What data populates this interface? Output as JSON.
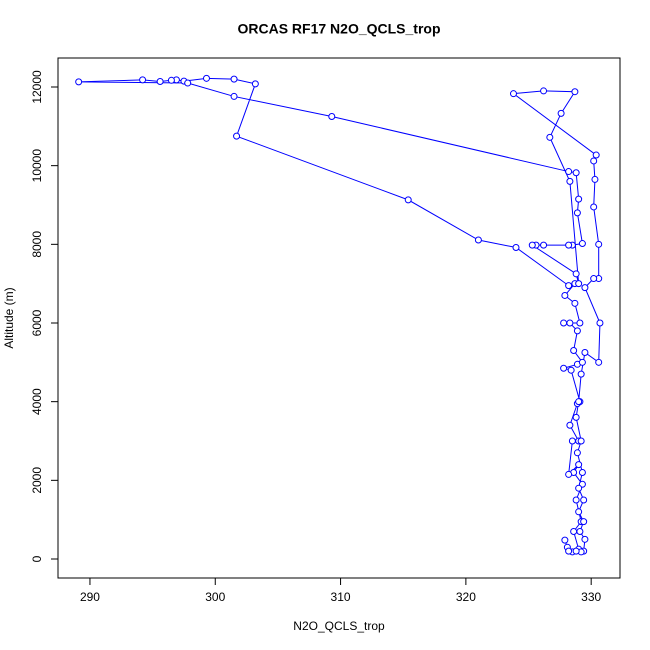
{
  "chart_data": {
    "type": "line",
    "title": "ORCAS RF17 N2O_QCLS_trop",
    "x_label": "N2O_QCLS_trop",
    "y_label": "Altitude (m)",
    "color": "#0000ff",
    "xlim": [
      287.45,
      332.3
    ],
    "ylim": [
      -483,
      12737
    ],
    "xticks": [
      290,
      300,
      310,
      320,
      330
    ],
    "yticks": [
      0,
      2000,
      4000,
      6000,
      8000,
      10000,
      12000
    ],
    "x": [
      327.9,
      328.1,
      328.5,
      329.0,
      328.6,
      329.2,
      328.8,
      329.3,
      328.6,
      329.0,
      328.2,
      328.5,
      329.0,
      328.3,
      328.9,
      329.1,
      328.4,
      327.8,
      328.9,
      329.3,
      328.6,
      328.9,
      328.3,
      327.8,
      329.1,
      328.7,
      327.9,
      328.7,
      328.2,
      324.0,
      321.0,
      315.4,
      301.7,
      303.2,
      301.5,
      299.3,
      297.5,
      296.9,
      296.5,
      295.6,
      294.2,
      289.1,
      297.8,
      301.5,
      309.3,
      328.2,
      328.8,
      329.0,
      328.9,
      329.3,
      328.5,
      328.2,
      326.2,
      325.6,
      325.3,
      328.8,
      329.0,
      328.3,
      326.7,
      327.6,
      328.7,
      326.2,
      323.8,
      330.4,
      330.2,
      330.3,
      330.2,
      330.6,
      330.6,
      330.2,
      329.5,
      330.7,
      330.6,
      329.5,
      329.2,
      329.0,
      328.8,
      329.2,
      328.9,
      329.3,
      329.0,
      329.4,
      329.0,
      329.4,
      329.1,
      329.5,
      329.4,
      329.2,
      328.8,
      328.2
    ],
    "values": [
      480,
      300,
      180,
      250,
      700,
      950,
      1500,
      1900,
      2200,
      2400,
      2150,
      3000,
      3000,
      3400,
      3950,
      4000,
      4800,
      4850,
      4950,
      5000,
      5300,
      5800,
      6000,
      6000,
      6000,
      6500,
      6700,
      7000,
      6950,
      7920,
      8110,
      9130,
      10750,
      12080,
      12200,
      12220,
      12150,
      12180,
      12170,
      12140,
      12180,
      12130,
      12100,
      11760,
      11250,
      9850,
      9820,
      9150,
      8800,
      8020,
      7980,
      7980,
      7980,
      7980,
      7980,
      7250,
      7000,
      9600,
      10720,
      11330,
      11880,
      11900,
      11830,
      10270,
      10120,
      9650,
      8950,
      8000,
      7130,
      7130,
      6900,
      6000,
      5000,
      5250,
      4700,
      4000,
      3600,
      3000,
      2700,
      2200,
      1800,
      1500,
      1200,
      950,
      700,
      500,
      200,
      180,
      200,
      200
    ]
  }
}
